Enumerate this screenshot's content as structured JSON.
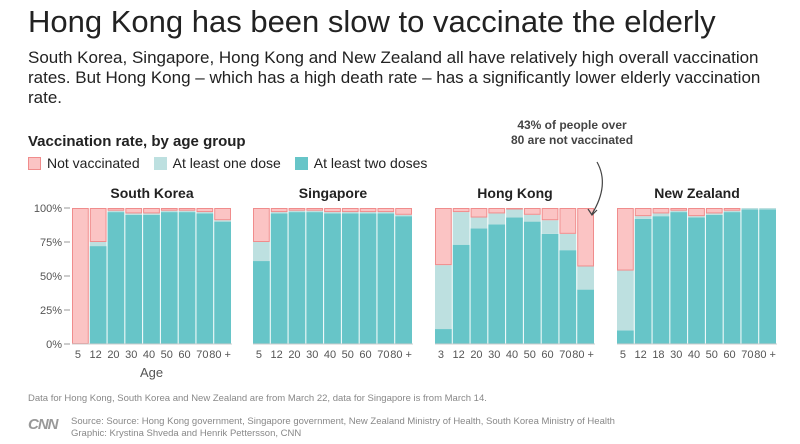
{
  "title": "Hong Kong has been slow to vaccinate the elderly",
  "subtitle": "South Korea, Singapore, Hong Kong and New Zealand all have relatively high overall vaccination rates. But Hong Kong – which has a high death rate – has a significantly lower elderly vaccination rate.",
  "chart_label": "Vaccination rate, by age group",
  "annotation": "43% of people over 80 are not vaccinated",
  "footnote": "Data for Hong Kong, South Korea and New Zealand are from March 22, data for Singapore is from March 14.",
  "source": "Source: Source: Hong Kong government, Singapore government, New Zealand Ministry of Health, South Korea Ministry of Health",
  "credit": "Graphic: Krystina Shveda and Henrik Pettersson, CNN",
  "logo": "CNN",
  "colors": {
    "not_vaccinated": "#fbc4c4",
    "one_dose": "#bde0e0",
    "two_doses": "#67c5c8"
  },
  "chart_data": {
    "type": "bar",
    "stacked": true,
    "ylim": [
      0,
      100
    ],
    "yticks": [
      "0%",
      "25%",
      "50%",
      "75%",
      "100%"
    ],
    "xlabel": "Age",
    "legend": [
      "Not vaccinated",
      "At least one dose",
      "At least two doses"
    ],
    "panels": [
      {
        "name": "South Korea",
        "ticks": [
          "5",
          "12",
          "20",
          "30",
          "40",
          "50",
          "60",
          "70",
          "80 +"
        ],
        "two_doses": [
          0,
          72,
          97,
          95,
          95,
          97,
          97,
          96,
          90
        ],
        "one_dose": [
          0,
          3,
          1,
          1,
          1,
          1,
          1,
          1,
          1
        ],
        "not_vaccinated": [
          100,
          25,
          2,
          4,
          4,
          2,
          2,
          3,
          9
        ]
      },
      {
        "name": "Singapore",
        "ticks": [
          "5",
          "12",
          "20",
          "30",
          "40",
          "50",
          "60",
          "70",
          "80 +"
        ],
        "two_doses": [
          61,
          96,
          97,
          97,
          96,
          96,
          96,
          96,
          94
        ],
        "one_dose": [
          14,
          1,
          1,
          1,
          1,
          1,
          1,
          1,
          1
        ],
        "not_vaccinated": [
          25,
          3,
          2,
          2,
          3,
          3,
          3,
          3,
          5
        ]
      },
      {
        "name": "Hong Kong",
        "ticks": [
          "3",
          "12",
          "20",
          "30",
          "40",
          "50",
          "60",
          "70",
          "80 +"
        ],
        "two_doses": [
          11,
          73,
          85,
          88,
          93,
          90,
          81,
          69,
          40
        ],
        "one_dose": [
          47,
          24,
          8,
          8,
          6,
          5,
          10,
          12,
          17
        ],
        "not_vaccinated": [
          42,
          3,
          7,
          4,
          1,
          5,
          9,
          19,
          43
        ]
      },
      {
        "name": "New Zealand",
        "ticks": [
          "5",
          "12",
          "18",
          "30",
          "40",
          "50",
          "60",
          "70",
          "80 +"
        ],
        "two_doses": [
          10,
          92,
          94,
          97,
          93,
          95,
          97,
          99,
          99
        ],
        "one_dose": [
          44,
          2,
          2,
          1,
          1,
          1,
          1,
          1,
          1
        ],
        "not_vaccinated": [
          46,
          6,
          4,
          2,
          6,
          4,
          2,
          0,
          0
        ]
      }
    ]
  }
}
